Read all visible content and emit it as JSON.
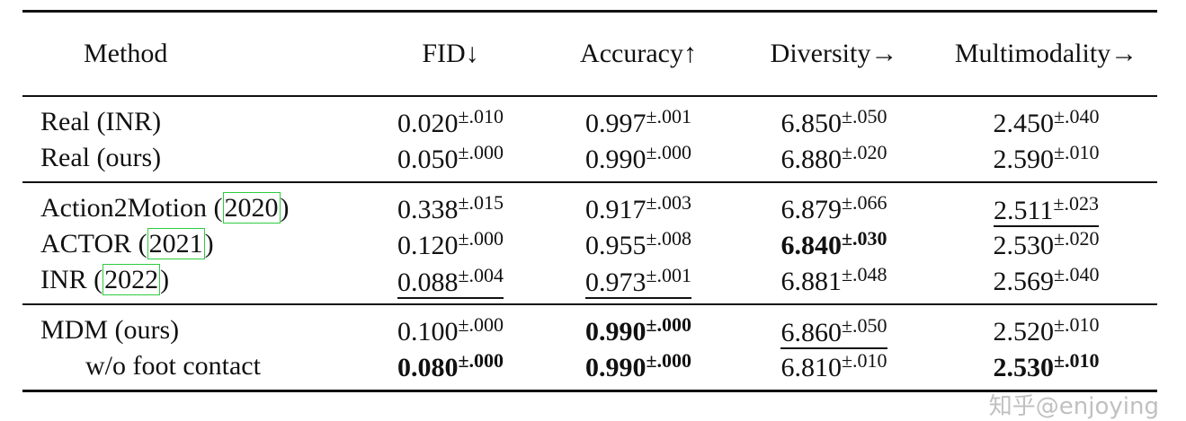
{
  "headers": [
    "Method",
    "FID↓",
    "Accuracy↑",
    "Diversity→",
    "Multimodality→"
  ],
  "groups": [
    [
      {
        "method": "Real (INR)",
        "cells": [
          {
            "v": "0.020",
            "s": "±.010"
          },
          {
            "v": "0.997",
            "s": "±.001"
          },
          {
            "v": "6.850",
            "s": "±.050"
          },
          {
            "v": "2.450",
            "s": "±.040"
          }
        ]
      },
      {
        "method": "Real (ours)",
        "cells": [
          {
            "v": "0.050",
            "s": "±.000"
          },
          {
            "v": "0.990",
            "s": "±.000"
          },
          {
            "v": "6.880",
            "s": "±.020"
          },
          {
            "v": "2.590",
            "s": "±.010"
          }
        ]
      }
    ],
    [
      {
        "method": "Action2Motion (",
        "cite": "2020",
        "method_end": ")",
        "cells": [
          {
            "v": "0.338",
            "s": "±.015"
          },
          {
            "v": "0.917",
            "s": "±.003"
          },
          {
            "v": "6.879",
            "s": "±.066"
          },
          {
            "v": "2.511",
            "s": "±.023",
            "underline": true
          }
        ]
      },
      {
        "method": "ACTOR (",
        "cite": "2021",
        "method_end": ")",
        "cells": [
          {
            "v": "0.120",
            "s": "±.000"
          },
          {
            "v": "0.955",
            "s": "±.008"
          },
          {
            "v": "6.840",
            "s": "±.030",
            "bold": true
          },
          {
            "v": "2.530",
            "s": "±.020"
          }
        ]
      },
      {
        "method": "INR (",
        "cite": "2022",
        "method_end": ")",
        "cells": [
          {
            "v": "0.088",
            "s": "±.004",
            "underline": true
          },
          {
            "v": "0.973",
            "s": "±.001",
            "underline": true
          },
          {
            "v": "6.881",
            "s": "±.048"
          },
          {
            "v": "2.569",
            "s": "±.040"
          }
        ]
      }
    ],
    [
      {
        "method": "MDM (ours)",
        "cells": [
          {
            "v": "0.100",
            "s": "±.000"
          },
          {
            "v": "0.990",
            "s": "±.000",
            "bold": true
          },
          {
            "v": "6.860",
            "s": "±.050",
            "underline": true
          },
          {
            "v": "2.520",
            "s": "±.010"
          }
        ]
      },
      {
        "method": "w/o foot contact",
        "indent": true,
        "cells": [
          {
            "v": "0.080",
            "s": "±.000",
            "bold": true
          },
          {
            "v": "0.990",
            "s": "±.000",
            "bold": true
          },
          {
            "v": "6.810",
            "s": "±.010"
          },
          {
            "v": "2.530",
            "s": "±.010",
            "bold": true
          }
        ]
      }
    ]
  ],
  "colors": {
    "citation_box": "#2ecc40",
    "watermark": "#969696"
  },
  "watermark": "知乎@enjoying"
}
